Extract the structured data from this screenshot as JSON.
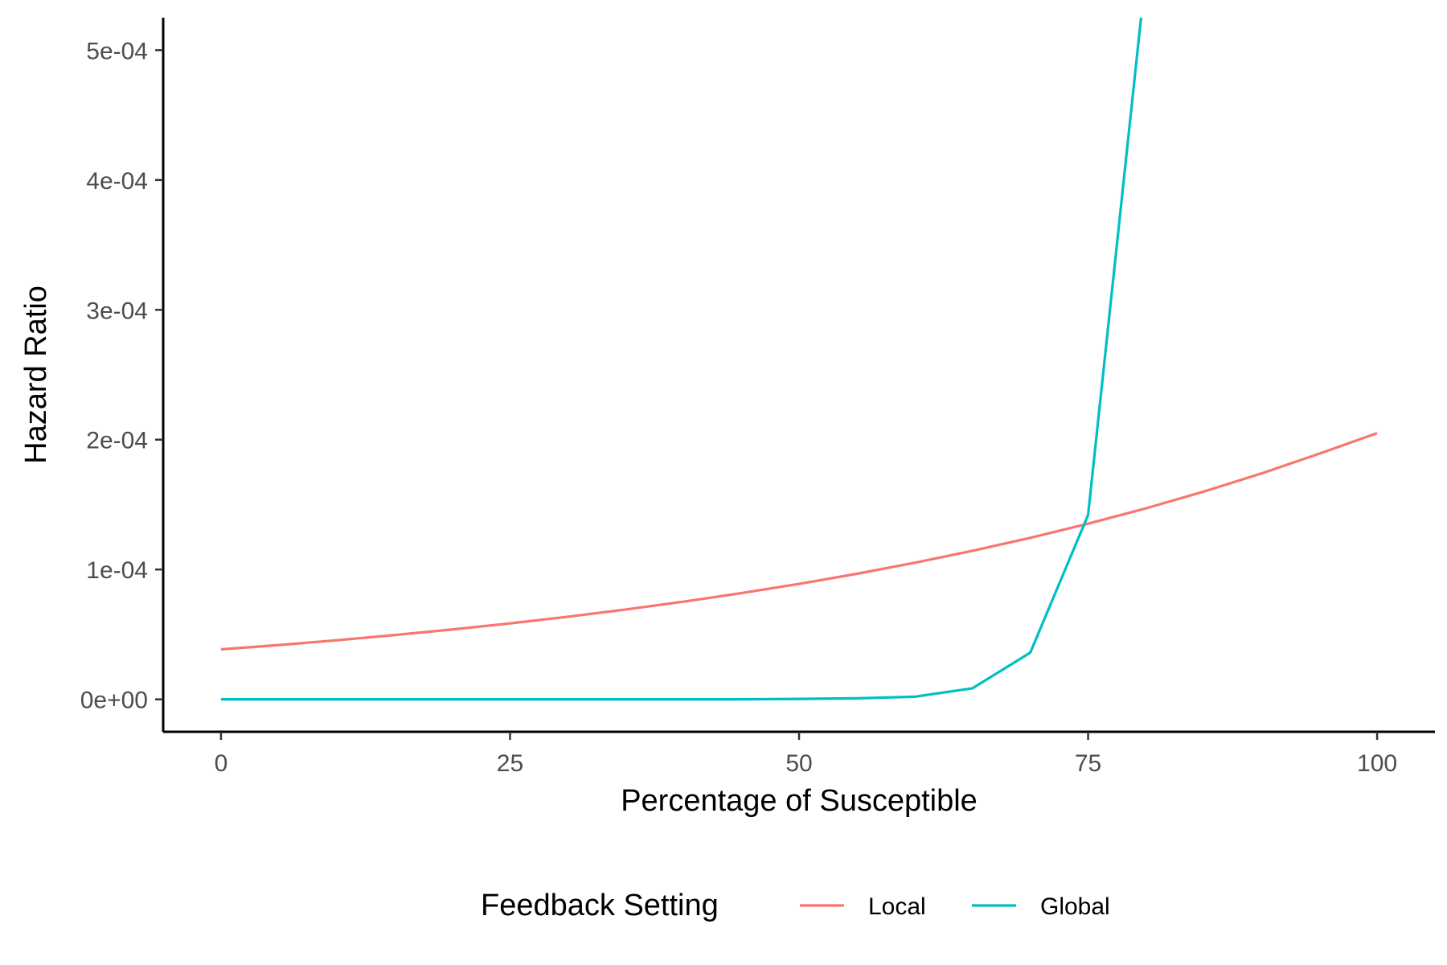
{
  "chart_data": {
    "type": "line",
    "xlabel": "Percentage of Susceptible",
    "ylabel": "Hazard Ratio",
    "xlim": [
      -5,
      105
    ],
    "ylim": [
      -2.5e-05,
      0.000525
    ],
    "x_ticks": [
      0,
      25,
      50,
      75,
      100
    ],
    "x_tick_labels": [
      "0",
      "25",
      "50",
      "75",
      "100"
    ],
    "y_ticks": [
      0,
      0.0001,
      0.0002,
      0.0003,
      0.0004,
      0.0005
    ],
    "y_tick_labels": [
      "0e+00",
      "1e-04",
      "2e-04",
      "3e-04",
      "4e-04",
      "5e-04"
    ],
    "grid": false,
    "legend": {
      "title": "Feedback Setting",
      "position": "bottom"
    },
    "series": [
      {
        "name": "Local",
        "color": "#F8766D",
        "x": [
          0,
          5,
          10,
          15,
          20,
          25,
          30,
          35,
          40,
          45,
          50,
          55,
          60,
          65,
          70,
          75,
          80,
          85,
          90,
          95,
          100
        ],
        "y": [
          3.85e-05,
          4.18e-05,
          4.55e-05,
          4.95e-05,
          5.38e-05,
          5.85e-05,
          6.36e-05,
          6.92e-05,
          7.52e-05,
          8.18e-05,
          8.89e-05,
          9.67e-05,
          0.0001052,
          0.0001144,
          0.0001244,
          0.0001353,
          0.0001471,
          0.00016,
          0.000174,
          0.0001892,
          0.000205
        ]
      },
      {
        "name": "Global",
        "color": "#00BFC4",
        "x": [
          0,
          5,
          10,
          15,
          20,
          25,
          30,
          35,
          40,
          45,
          50,
          55,
          60,
          65,
          70,
          75,
          80
        ],
        "y": [
          0,
          0,
          0,
          0,
          0,
          0,
          0,
          0,
          0,
          0,
          3e-07,
          8e-07,
          2e-06,
          8.5e-06,
          3.6e-05,
          0.000142,
          0.00056
        ]
      }
    ]
  }
}
